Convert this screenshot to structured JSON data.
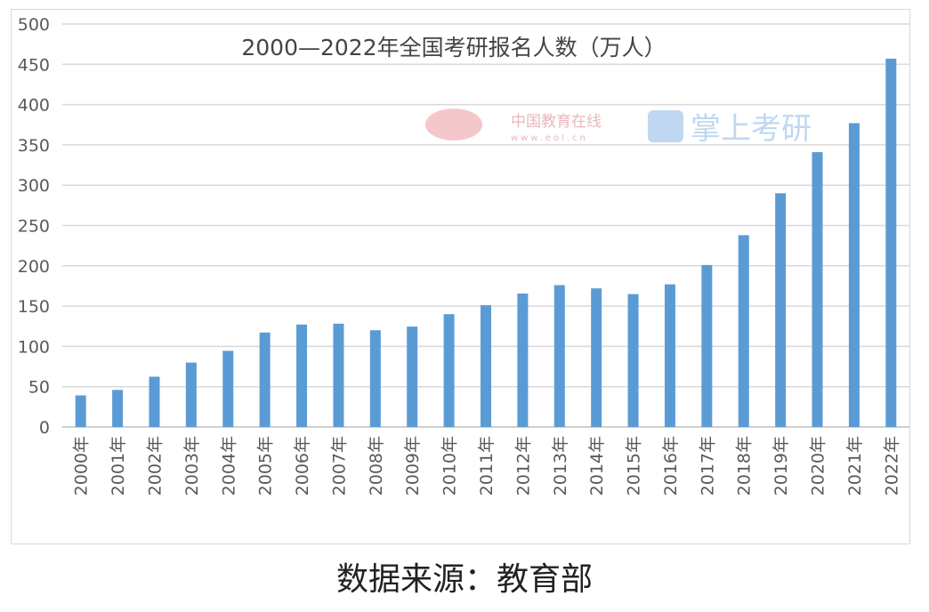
{
  "chart_data": {
    "type": "bar",
    "title": "2000—2022年全国考研报名人数（万人）",
    "categories": [
      "2000年",
      "2001年",
      "2002年",
      "2003年",
      "2004年",
      "2005年",
      "2006年",
      "2007年",
      "2008年",
      "2009年",
      "2010年",
      "2011年",
      "2012年",
      "2013年",
      "2014年",
      "2015年",
      "2016年",
      "2017年",
      "2018年",
      "2019年",
      "2020年",
      "2021年",
      "2022年"
    ],
    "values": [
      39.2,
      46,
      62.4,
      79.9,
      94.5,
      117.2,
      127.1,
      128.2,
      120,
      124.6,
      140,
      151.1,
      165.6,
      176,
      172,
      164.9,
      177,
      201,
      238,
      290,
      341,
      377,
      457
    ],
    "xlabel": "",
    "ylabel": "",
    "ylim": [
      0,
      500
    ],
    "yticks": [
      0,
      50,
      100,
      150,
      200,
      250,
      300,
      350,
      400,
      450,
      500
    ],
    "grid": true,
    "bar_color": "#5b9bd5",
    "watermark": {
      "eol": "中国教育在线",
      "eol_url": "www.eol.cn",
      "app": "掌上考研"
    }
  },
  "source": "数据来源：教育部"
}
